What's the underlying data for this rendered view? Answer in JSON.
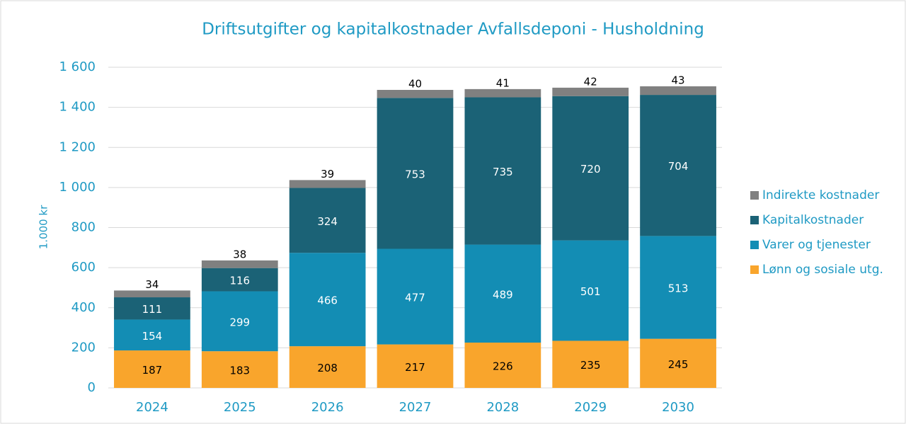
{
  "chart_data": {
    "type": "stacked_bar",
    "title": "Driftsutgifter og kapitalkostnader Avfallsdeponi - Husholdning",
    "y_label": "1.000 kr",
    "categories": [
      "2024",
      "2025",
      "2026",
      "2027",
      "2028",
      "2029",
      "2030"
    ],
    "series": [
      {
        "name": "Lønn og sosiale utg.",
        "color": "#f9a52c",
        "values": [
          187,
          183,
          208,
          217,
          226,
          235,
          245
        ]
      },
      {
        "name": "Varer og tjenester",
        "color": "#138db4",
        "values": [
          154,
          299,
          466,
          477,
          489,
          501,
          513
        ]
      },
      {
        "name": "Kapitalkostnader",
        "color": "#1b6276",
        "values": [
          111,
          116,
          324,
          753,
          735,
          720,
          704
        ]
      },
      {
        "name": "Indirekte kostnader",
        "color": "#808080",
        "values": [
          34,
          38,
          39,
          40,
          41,
          42,
          43
        ]
      }
    ],
    "ylim": [
      0,
      1600
    ],
    "yticks": [
      0,
      200,
      400,
      600,
      800,
      {
        "value": 1000,
        "label": "1 000"
      },
      {
        "value": 1200,
        "label": "1 200"
      },
      {
        "value": 1400,
        "label": "1 400"
      },
      {
        "value": 1600,
        "label": "1 600"
      }
    ],
    "grid": true,
    "legend": "right"
  }
}
